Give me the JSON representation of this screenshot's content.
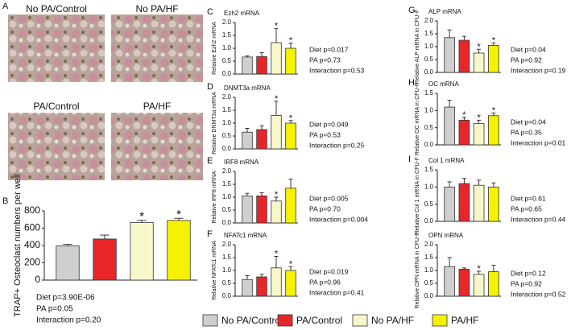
{
  "panel_a": {
    "letter": "A",
    "images": [
      "No PA/Control",
      "No PA/HF",
      "PA/Control",
      "PA/HF"
    ]
  },
  "legend": {
    "labels": [
      "No PA/Control",
      "PA/Control",
      "No PA/HF",
      "PA/HF"
    ],
    "colors": [
      "#cfcfcf",
      "#e8262a",
      "#f7f7c9",
      "#f5f200"
    ]
  },
  "chart_data": [
    {
      "type": "bar",
      "letter": "B",
      "ylabel": "TRAP+ Osteoclast numbers per well",
      "values": [
        395,
        475,
        665,
        690
      ],
      "errors": [
        18,
        45,
        25,
        25
      ],
      "ylim": [
        0,
        800
      ],
      "yticks": [
        0,
        200,
        400,
        600,
        800
      ],
      "stars": [
        {
          "index": 2,
          "label": "*"
        },
        {
          "index": 3,
          "label": "*"
        }
      ],
      "stats": [
        "Diet p=3.90E-06",
        "PA p=0.05",
        "Interaction p=0.20"
      ]
    },
    {
      "type": "bar",
      "letter": "C",
      "title": "Ezh2 mRNA",
      "ylabel": "Relative Ezh2 mRNA",
      "values": [
        0.66,
        0.68,
        1.22,
        1.0
      ],
      "errors": [
        0.05,
        0.15,
        0.55,
        0.2
      ],
      "ylim": [
        0,
        2
      ],
      "yticks": [
        {
          "value": 0,
          "label": "0.0"
        },
        0.5,
        {
          "value": 1,
          "label": "1.0"
        },
        1.5,
        {
          "value": 2,
          "label": "2.0"
        }
      ],
      "stars": [
        {
          "index": 2,
          "label": "*"
        },
        {
          "index": 3,
          "label": "*"
        }
      ],
      "stats": [
        "Diet p=0.017",
        "PA p=0.73",
        "Interaction p=0.53"
      ]
    },
    {
      "type": "bar",
      "letter": "D",
      "title": "DNMT3a mRNA",
      "ylabel": "Relative DNMT3a mRNA",
      "values": [
        0.65,
        0.75,
        1.3,
        1.0
      ],
      "errors": [
        0.15,
        0.15,
        0.55,
        0.1
      ],
      "ylim": [
        0,
        2
      ],
      "yticks": [
        {
          "value": 0,
          "label": "0.0"
        },
        0.5,
        {
          "value": 1,
          "label": "1.0"
        },
        1.5,
        {
          "value": 2,
          "label": "2.0"
        }
      ],
      "stars": [
        {
          "index": 2,
          "label": "*"
        },
        {
          "index": 3,
          "label": "*"
        }
      ],
      "stats": [
        "Diet p=0.049",
        "PA p=0.53",
        "Interaction p=0.25"
      ]
    },
    {
      "type": "bar",
      "letter": "E",
      "title": "IRF8 mRNA",
      "ylabel": "Relative IRF8 mRNA",
      "values": [
        1.05,
        1.05,
        0.85,
        1.35
      ],
      "errors": [
        0.1,
        0.12,
        0.15,
        0.35
      ],
      "ylim": [
        0,
        2
      ],
      "yticks": [
        {
          "value": 0,
          "label": "0.0"
        },
        0.5,
        {
          "value": 1,
          "label": "1.0"
        },
        1.5,
        {
          "value": 2,
          "label": "2.0"
        }
      ],
      "stars": [
        {
          "index": 2,
          "label": "*"
        }
      ],
      "stats": [
        "Diet p=0.005",
        "PA p=0.70",
        "Interaction p=0.004"
      ]
    },
    {
      "type": "bar",
      "letter": "F",
      "title": "NFATc1 mRNA",
      "ylabel": "Relative NFATc1 mRNA",
      "values": [
        0.65,
        0.75,
        1.1,
        1.0
      ],
      "errors": [
        0.15,
        0.1,
        0.45,
        0.15
      ],
      "ylim": [
        0,
        2
      ],
      "yticks": [
        {
          "value": 0,
          "label": "0.0"
        },
        0.5,
        {
          "value": 1,
          "label": "1.0"
        },
        1.5,
        {
          "value": 2,
          "label": "2.0"
        }
      ],
      "stars": [
        {
          "index": 2,
          "label": "*"
        },
        {
          "index": 3,
          "label": "*"
        }
      ],
      "stats": [
        "Diet p=0.019",
        "PA p=0.96",
        "Interaction p=0.41"
      ]
    },
    {
      "type": "bar",
      "letter": "G",
      "title": "ALP mRNA",
      "ylabel": "Relative ALP mRNA in CFU-F",
      "values": [
        1.35,
        1.25,
        0.75,
        1.05
      ],
      "errors": [
        0.3,
        0.15,
        0.15,
        0.1
      ],
      "ylim": [
        0,
        2
      ],
      "yticks": [
        {
          "value": 0,
          "label": "0.0"
        },
        0.5,
        {
          "value": 1,
          "label": "1.0"
        },
        1.5,
        {
          "value": 2,
          "label": "2.0"
        }
      ],
      "stars": [
        {
          "index": 2,
          "label": "*"
        },
        {
          "index": 3,
          "label": "*"
        }
      ],
      "stats": [
        "Diet p=0.04",
        "PA p=0.92",
        "Interaction p=0.19"
      ]
    },
    {
      "type": "bar",
      "letter": "H",
      "title": "OC mRNA",
      "ylabel": "Relative OC mRNA in CFU-F",
      "values": [
        1.1,
        0.72,
        0.62,
        0.85
      ],
      "errors": [
        0.2,
        0.08,
        0.1,
        0.08
      ],
      "ylim": [
        0,
        1.5
      ],
      "yticks": [
        {
          "value": 0,
          "label": "0.0"
        },
        0.5,
        {
          "value": 1,
          "label": "1.0"
        },
        1.5
      ],
      "stars": [
        {
          "index": 1,
          "label": "*"
        },
        {
          "index": 2,
          "label": "*"
        },
        {
          "index": 3,
          "label": "*"
        }
      ],
      "stats": [
        "Diet p=0.04",
        "PA p=0.35",
        "Interaction p=0.01"
      ]
    },
    {
      "type": "bar",
      "letter": "I",
      "title": "Col 1 mRNA",
      "ylabel": "Relative Col 1 mRNA in CFU-F",
      "values": [
        1.0,
        1.1,
        1.05,
        1.0
      ],
      "errors": [
        0.15,
        0.15,
        0.15,
        0.12
      ],
      "ylim": [
        0,
        1.5
      ],
      "yticks": [
        {
          "value": 0,
          "label": "0.0"
        },
        0.5,
        {
          "value": 1,
          "label": "1.0"
        },
        1.5
      ],
      "stars": [],
      "stats": [
        "Diet p=0.61",
        "PA p=0.65",
        "Interaction p=0.44"
      ]
    },
    {
      "type": "bar",
      "title": "OPN mRNA",
      "ylabel": "Relative OPN mRNA in CFU-F",
      "values": [
        1.15,
        1.05,
        0.85,
        0.95
      ],
      "errors": [
        0.35,
        0.05,
        0.12,
        0.25
      ],
      "ylim": [
        0,
        2
      ],
      "yticks": [
        {
          "value": 0,
          "label": "0.0"
        },
        0.5,
        {
          "value": 1,
          "label": "1.0"
        },
        1.5,
        {
          "value": 2,
          "label": "2.0"
        }
      ],
      "stars": [
        {
          "index": 2,
          "label": "*"
        }
      ],
      "stats": [
        "Diet p=0.12",
        "PA p=0.92",
        "Interaction p=0.52"
      ]
    }
  ]
}
